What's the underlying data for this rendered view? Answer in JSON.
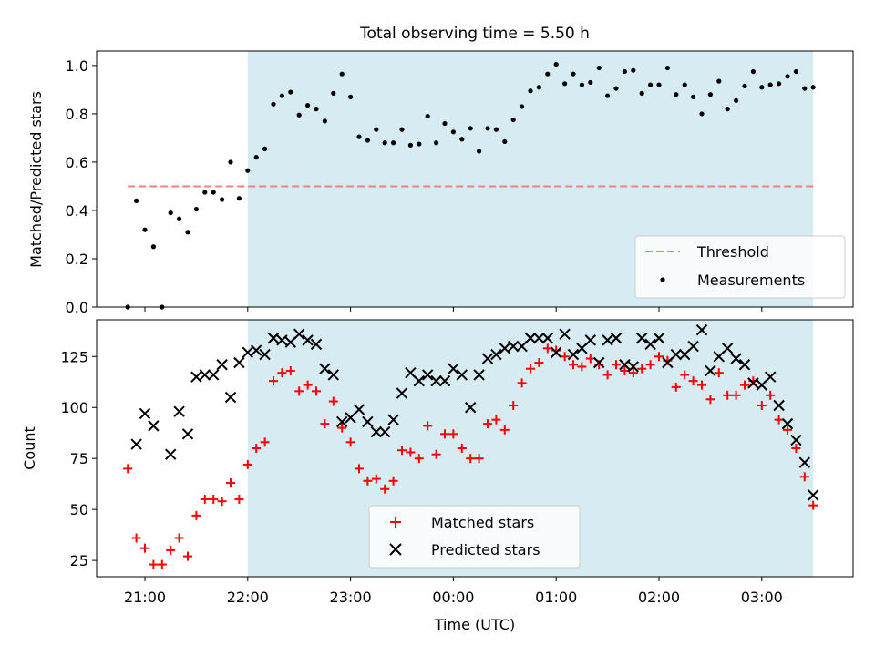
{
  "chart_data": [
    {
      "type": "scatter",
      "title": "Total observing time = 5.50 h",
      "ylabel": "Matched/Predicted stars",
      "ylim": [
        0,
        1.06
      ],
      "yticks": [
        0.0,
        0.2,
        0.4,
        0.6,
        0.8,
        1.0
      ],
      "ytick_labels": [
        "0.0",
        "0.2",
        "0.4",
        "0.6",
        "0.8",
        "1.0"
      ],
      "grid": false,
      "legend": "lower-right",
      "observing_window": {
        "start": "22:00",
        "end": "03:30",
        "color": "#add8e6"
      },
      "threshold": {
        "name": "Threshold",
        "value": 0.5,
        "x_start": "20:50",
        "x_end": "03:30",
        "color": "#f08080"
      },
      "series": [
        {
          "name": "Measurements",
          "color": "#000000",
          "points": [
            [
              "20:50",
              0.0
            ],
            [
              "20:55",
              0.44
            ],
            [
              "21:00",
              0.32
            ],
            [
              "21:05",
              0.25
            ],
            [
              "21:10",
              0.0
            ],
            [
              "21:15",
              0.39
            ],
            [
              "21:20",
              0.365
            ],
            [
              "21:25",
              0.31
            ],
            [
              "21:30",
              0.405
            ],
            [
              "21:35",
              0.475
            ],
            [
              "21:40",
              0.475
            ],
            [
              "21:45",
              0.445
            ],
            [
              "21:50",
              0.6
            ],
            [
              "21:55",
              0.45
            ],
            [
              "22:00",
              0.565
            ],
            [
              "22:05",
              0.62
            ],
            [
              "22:10",
              0.655
            ],
            [
              "22:15",
              0.84
            ],
            [
              "22:20",
              0.875
            ],
            [
              "22:25",
              0.89
            ],
            [
              "22:30",
              0.795
            ],
            [
              "22:35",
              0.835
            ],
            [
              "22:40",
              0.82
            ],
            [
              "22:45",
              0.77
            ],
            [
              "22:50",
              0.885
            ],
            [
              "22:55",
              0.965
            ],
            [
              "23:00",
              0.87
            ],
            [
              "23:05",
              0.705
            ],
            [
              "23:10",
              0.69
            ],
            [
              "23:15",
              0.735
            ],
            [
              "23:20",
              0.68
            ],
            [
              "23:25",
              0.68
            ],
            [
              "23:30",
              0.735
            ],
            [
              "23:35",
              0.67
            ],
            [
              "23:40",
              0.675
            ],
            [
              "23:45",
              0.79
            ],
            [
              "23:50",
              0.68
            ],
            [
              "23:55",
              0.76
            ],
            [
              "00:00",
              0.725
            ],
            [
              "00:05",
              0.695
            ],
            [
              "00:10",
              0.74
            ],
            [
              "00:15",
              0.645
            ],
            [
              "00:20",
              0.74
            ],
            [
              "00:25",
              0.735
            ],
            [
              "00:30",
              0.685
            ],
            [
              "00:35",
              0.775
            ],
            [
              "00:40",
              0.83
            ],
            [
              "00:45",
              0.895
            ],
            [
              "00:50",
              0.91
            ],
            [
              "00:55",
              0.965
            ],
            [
              "01:00",
              1.005
            ],
            [
              "01:05",
              0.925
            ],
            [
              "01:10",
              0.965
            ],
            [
              "01:15",
              0.92
            ],
            [
              "01:20",
              0.93
            ],
            [
              "01:25",
              0.99
            ],
            [
              "01:30",
              0.875
            ],
            [
              "01:35",
              0.905
            ],
            [
              "01:40",
              0.975
            ],
            [
              "01:45",
              0.98
            ],
            [
              "01:50",
              0.885
            ],
            [
              "01:55",
              0.92
            ],
            [
              "02:00",
              0.92
            ],
            [
              "02:05",
              0.99
            ],
            [
              "02:10",
              0.88
            ],
            [
              "02:15",
              0.92
            ],
            [
              "02:20",
              0.87
            ],
            [
              "02:25",
              0.8
            ],
            [
              "02:30",
              0.88
            ],
            [
              "02:35",
              0.935
            ],
            [
              "02:40",
              0.82
            ],
            [
              "02:45",
              0.855
            ],
            [
              "02:50",
              0.915
            ],
            [
              "02:55",
              0.975
            ],
            [
              "03:00",
              0.91
            ],
            [
              "03:05",
              0.92
            ],
            [
              "03:10",
              0.925
            ],
            [
              "03:15",
              0.955
            ],
            [
              "03:20",
              0.975
            ],
            [
              "03:25",
              0.905
            ],
            [
              "03:30",
              0.91
            ]
          ]
        }
      ]
    },
    {
      "type": "scatter",
      "xlabel": "Time (UTC)",
      "ylabel": "Count",
      "ylim": [
        17,
        143
      ],
      "yticks": [
        25,
        50,
        75,
        100,
        125
      ],
      "ytick_labels": [
        "25",
        "50",
        "75",
        "100",
        "125"
      ],
      "xticks": [
        "21:00",
        "22:00",
        "23:00",
        "00:00",
        "01:00",
        "02:00",
        "03:00"
      ],
      "xtick_labels": [
        "21:00",
        "22:00",
        "23:00",
        "00:00",
        "01:00",
        "02:00",
        "03:00"
      ],
      "grid": false,
      "legend": "lower-center",
      "observing_window": {
        "start": "22:00",
        "end": "03:30",
        "color": "#add8e6"
      },
      "series": [
        {
          "name": "Matched stars",
          "marker": "plus",
          "color": "#ff0000",
          "points": [
            [
              "20:50",
              70
            ],
            [
              "20:55",
              36
            ],
            [
              "21:00",
              31
            ],
            [
              "21:05",
              23
            ],
            [
              "21:10",
              23
            ],
            [
              "21:15",
              30
            ],
            [
              "21:20",
              36
            ],
            [
              "21:25",
              27
            ],
            [
              "21:30",
              47
            ],
            [
              "21:35",
              55
            ],
            [
              "21:40",
              55
            ],
            [
              "21:45",
              54
            ],
            [
              "21:50",
              63
            ],
            [
              "21:55",
              55
            ],
            [
              "22:00",
              72
            ],
            [
              "22:05",
              80
            ],
            [
              "22:10",
              83
            ],
            [
              "22:15",
              113
            ],
            [
              "22:20",
              117
            ],
            [
              "22:25",
              118
            ],
            [
              "22:30",
              108
            ],
            [
              "22:35",
              111
            ],
            [
              "22:40",
              108
            ],
            [
              "22:45",
              92
            ],
            [
              "22:50",
              103
            ],
            [
              "22:55",
              90
            ],
            [
              "23:00",
              83
            ],
            [
              "23:05",
              70
            ],
            [
              "23:10",
              64
            ],
            [
              "23:15",
              65
            ],
            [
              "23:20",
              60
            ],
            [
              "23:25",
              64
            ],
            [
              "23:30",
              79
            ],
            [
              "23:35",
              78
            ],
            [
              "23:40",
              75
            ],
            [
              "23:45",
              91
            ],
            [
              "23:50",
              77
            ],
            [
              "23:55",
              87
            ],
            [
              "00:00",
              87
            ],
            [
              "00:05",
              80
            ],
            [
              "00:10",
              75
            ],
            [
              "00:15",
              75
            ],
            [
              "00:20",
              92
            ],
            [
              "00:25",
              94
            ],
            [
              "00:30",
              89
            ],
            [
              "00:35",
              101
            ],
            [
              "00:40",
              112
            ],
            [
              "00:45",
              119
            ],
            [
              "00:50",
              122
            ],
            [
              "00:55",
              129
            ],
            [
              "01:00",
              128
            ],
            [
              "01:05",
              125
            ],
            [
              "01:10",
              121
            ],
            [
              "01:15",
              120
            ],
            [
              "01:20",
              124
            ],
            [
              "01:25",
              121
            ],
            [
              "01:30",
              116
            ],
            [
              "01:35",
              121
            ],
            [
              "01:40",
              118
            ],
            [
              "01:45",
              117
            ],
            [
              "01:50",
              119
            ],
            [
              "01:55",
              121
            ],
            [
              "02:00",
              125
            ],
            [
              "02:05",
              123
            ],
            [
              "02:10",
              110
            ],
            [
              "02:15",
              116
            ],
            [
              "02:20",
              113
            ],
            [
              "02:25",
              111
            ],
            [
              "02:30",
              104
            ],
            [
              "02:35",
              117
            ],
            [
              "02:40",
              106
            ],
            [
              "02:45",
              106
            ],
            [
              "02:50",
              111
            ],
            [
              "02:55",
              113
            ],
            [
              "03:00",
              101
            ],
            [
              "03:05",
              106
            ],
            [
              "03:10",
              94
            ],
            [
              "03:15",
              89
            ],
            [
              "03:20",
              80
            ],
            [
              "03:25",
              66
            ],
            [
              "03:30",
              52
            ]
          ]
        },
        {
          "name": "Predicted stars",
          "marker": "x",
          "color": "#000000",
          "points": [
            [
              "20:55",
              82
            ],
            [
              "21:00",
              97
            ],
            [
              "21:05",
              91
            ],
            [
              "21:15",
              77
            ],
            [
              "21:20",
              98
            ],
            [
              "21:25",
              87
            ],
            [
              "21:30",
              115
            ],
            [
              "21:35",
              116
            ],
            [
              "21:40",
              116
            ],
            [
              "21:45",
              121
            ],
            [
              "21:50",
              105
            ],
            [
              "21:55",
              122
            ],
            [
              "22:00",
              127
            ],
            [
              "22:05",
              128
            ],
            [
              "22:10",
              126
            ],
            [
              "22:15",
              134
            ],
            [
              "22:20",
              133
            ],
            [
              "22:25",
              132
            ],
            [
              "22:30",
              136
            ],
            [
              "22:35",
              133
            ],
            [
              "22:40",
              131
            ],
            [
              "22:45",
              119
            ],
            [
              "22:50",
              116
            ],
            [
              "22:55",
              93
            ],
            [
              "23:00",
              95
            ],
            [
              "23:05",
              99
            ],
            [
              "23:10",
              93
            ],
            [
              "23:15",
              88
            ],
            [
              "23:20",
              88
            ],
            [
              "23:25",
              94
            ],
            [
              "23:30",
              107
            ],
            [
              "23:35",
              117
            ],
            [
              "23:40",
              113
            ],
            [
              "23:45",
              116
            ],
            [
              "23:50",
              113
            ],
            [
              "23:55",
              113
            ],
            [
              "00:00",
              119
            ],
            [
              "00:05",
              116
            ],
            [
              "00:10",
              100
            ],
            [
              "00:15",
              116
            ],
            [
              "00:20",
              124
            ],
            [
              "00:25",
              126
            ],
            [
              "00:30",
              129
            ],
            [
              "00:35",
              130
            ],
            [
              "00:40",
              130
            ],
            [
              "00:45",
              134
            ],
            [
              "00:50",
              134
            ],
            [
              "00:55",
              134
            ],
            [
              "01:00",
              127
            ],
            [
              "01:05",
              136
            ],
            [
              "01:10",
              126
            ],
            [
              "01:15",
              129
            ],
            [
              "01:20",
              133
            ],
            [
              "01:25",
              122
            ],
            [
              "01:30",
              133
            ],
            [
              "01:35",
              134
            ],
            [
              "01:40",
              121
            ],
            [
              "01:45",
              120
            ],
            [
              "01:50",
              134
            ],
            [
              "01:55",
              131
            ],
            [
              "02:00",
              134
            ],
            [
              "02:05",
              122
            ],
            [
              "02:10",
              126
            ],
            [
              "02:15",
              126
            ],
            [
              "02:20",
              130
            ],
            [
              "02:25",
              138
            ],
            [
              "02:30",
              118
            ],
            [
              "02:35",
              125
            ],
            [
              "02:40",
              129
            ],
            [
              "02:45",
              124
            ],
            [
              "02:50",
              121
            ],
            [
              "02:55",
              112
            ],
            [
              "03:00",
              111
            ],
            [
              "03:05",
              115
            ],
            [
              "03:10",
              101
            ],
            [
              "03:15",
              92
            ],
            [
              "03:20",
              84
            ],
            [
              "03:25",
              73
            ],
            [
              "03:30",
              57
            ]
          ]
        }
      ]
    }
  ]
}
